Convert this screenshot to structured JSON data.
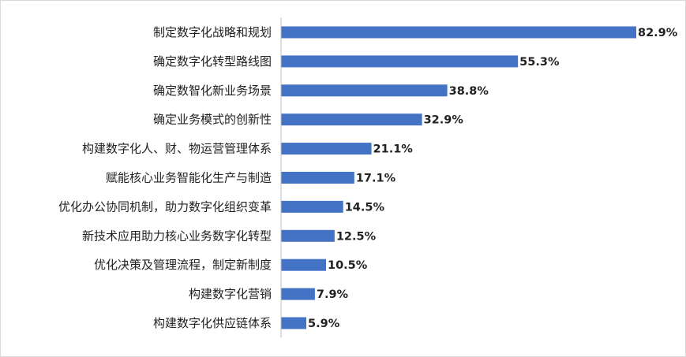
{
  "chart_data": {
    "type": "bar",
    "orientation": "horizontal",
    "title": "",
    "xlabel": "",
    "ylabel": "",
    "value_suffix": "%",
    "xlim": [
      0,
      82.9
    ],
    "grid": false,
    "legend": "none",
    "bar_color": "#4472c4",
    "categories": [
      "制定数字化战略和规划",
      "确定数字化转型路线图",
      "确定数智化新业务场景",
      "确定业务模式的创新性",
      "构建数字化人、财、物运营管理体系",
      "赋能核心业务智能化生产与制造",
      "优化办公协同机制，助力数字化组织变革",
      "新技术应用助力核心业务数字化转型",
      "优化决策及管理流程，制定新制度",
      "构建数字化营销",
      "构建数字化供应链体系"
    ],
    "values": [
      82.9,
      55.3,
      38.8,
      32.9,
      21.1,
      17.1,
      14.5,
      12.5,
      10.5,
      7.9,
      5.9
    ],
    "value_labels": [
      "82.9%",
      "55.3%",
      "38.8%",
      "32.9%",
      "21.1%",
      "17.1%",
      "14.5%",
      "12.5%",
      "10.5%",
      "7.9%",
      "5.9%"
    ]
  }
}
